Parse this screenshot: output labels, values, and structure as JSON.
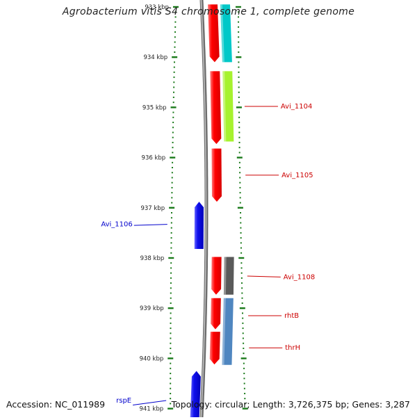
{
  "title": "Agrobacterium vitis S4 chromosome 1, complete genome",
  "footer": {
    "accession": "Accession: NC_011989",
    "summary": "Topology: circular; Length: 3,726,375 bp; Genes: 3,287"
  },
  "colors": {
    "tick": "#1a7a1a",
    "backbone": "#7a7a7a",
    "forward_gene": "#1010ee",
    "reverse_gene": "#ff0000",
    "label_reverse": "#cc0000",
    "label_forward": "#0000cc"
  },
  "scale": {
    "unit": "kbp",
    "ticks": [
      {
        "value": 933,
        "label": "933 kbp"
      },
      {
        "value": 934,
        "label": "934 kbp"
      },
      {
        "value": 935,
        "label": "935 kbp"
      },
      {
        "value": 936,
        "label": "936 kbp"
      },
      {
        "value": 937,
        "label": "937 kbp"
      },
      {
        "value": 938,
        "label": "938 kbp"
      },
      {
        "value": 939,
        "label": "939 kbp"
      },
      {
        "value": 940,
        "label": "940 kbp"
      },
      {
        "value": 941,
        "label": "941 kbp"
      }
    ]
  },
  "genes": [
    {
      "strand": "reverse",
      "start": 932.95,
      "end": 934.1,
      "color": "#ff0000"
    },
    {
      "strand": "reverse",
      "start": 934.28,
      "end": 935.73,
      "color": "#ff0000"
    },
    {
      "strand": "reverse",
      "start": 935.82,
      "end": 936.88,
      "color": "#ff0000"
    },
    {
      "strand": "reverse",
      "start": 937.98,
      "end": 938.73,
      "color": "#ff0000"
    },
    {
      "strand": "reverse",
      "start": 938.8,
      "end": 939.42,
      "color": "#ff0000"
    },
    {
      "strand": "reverse",
      "start": 939.47,
      "end": 940.12,
      "color": "#ff0000"
    },
    {
      "strand": "forward",
      "start": 936.88,
      "end": 937.82,
      "color": "#1010ee"
    },
    {
      "strand": "forward",
      "start": 940.25,
      "end": 941.2,
      "color": "#1010ee"
    }
  ],
  "cds": [
    {
      "start": 932.95,
      "end": 934.1,
      "color": "#00c8c8"
    },
    {
      "start": 934.28,
      "end": 935.68,
      "color": "#a6f22e"
    },
    {
      "start": 937.98,
      "end": 938.73,
      "color": "#5a5a5a"
    },
    {
      "start": 938.8,
      "end": 940.13,
      "color": "#4f86c0"
    }
  ],
  "labels": [
    {
      "text": "Avi_1104",
      "side": "right",
      "position": 934.98,
      "anchor": 934.98
    },
    {
      "text": "Avi_1105",
      "side": "right",
      "position": 936.35,
      "anchor": 936.35
    },
    {
      "text": "Avi_1106",
      "side": "left",
      "position": 937.33,
      "anchor": 937.35
    },
    {
      "text": "Avi_1108",
      "side": "right",
      "position": 938.38,
      "anchor": 938.36
    },
    {
      "text": "rhtB",
      "side": "right",
      "position": 939.15,
      "anchor": 939.15
    },
    {
      "text": "thrH",
      "side": "right",
      "position": 939.79,
      "anchor": 939.79
    },
    {
      "text": "rspE",
      "side": "left",
      "position": 940.84,
      "anchor": 940.93
    }
  ]
}
